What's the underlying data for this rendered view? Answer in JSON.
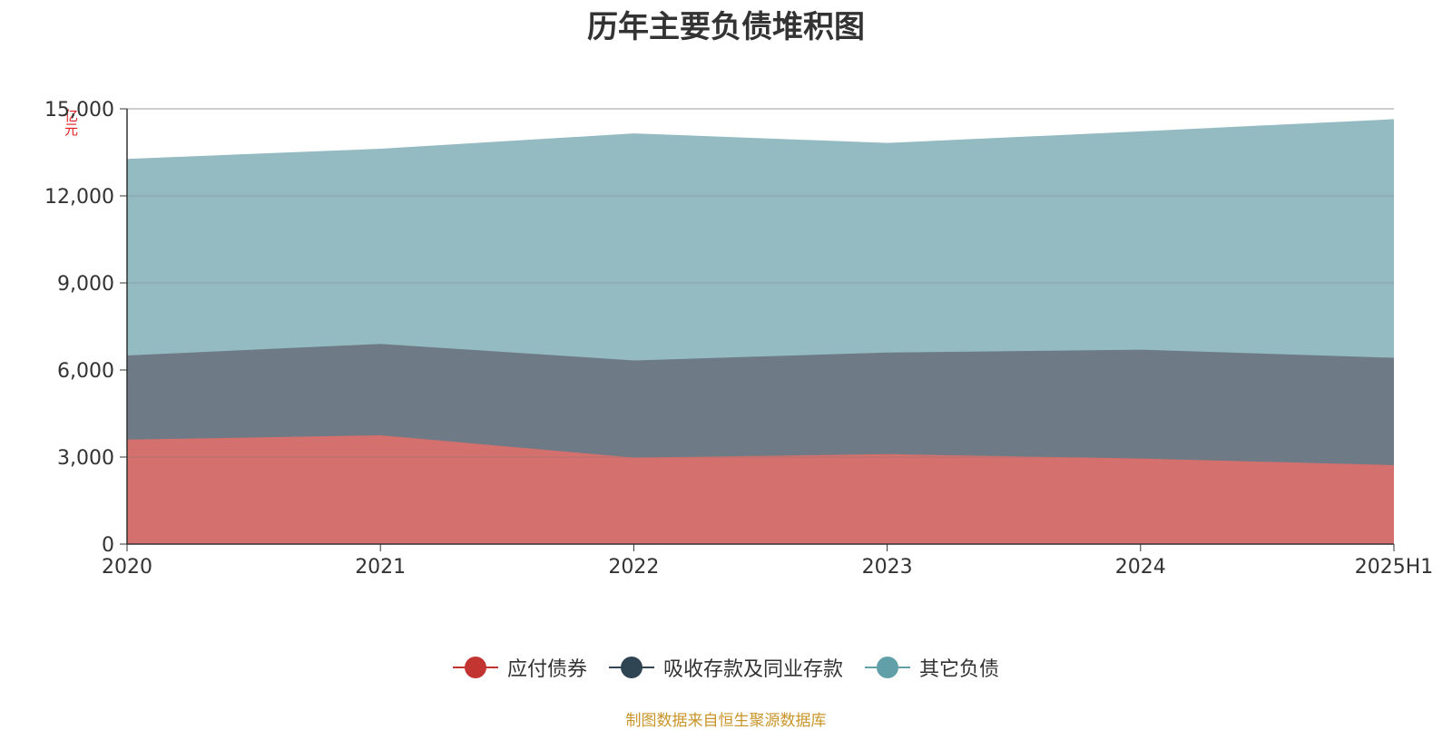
{
  "chart_data": {
    "type": "area",
    "stacked": true,
    "title": "历年主要负债堆积图",
    "ylabel": "亿元",
    "categories": [
      "2020",
      "2021",
      "2022",
      "2023",
      "2024",
      "2025H1"
    ],
    "ylim": [
      0,
      15000
    ],
    "yticks": [
      0,
      3000,
      6000,
      9000,
      12000,
      15000
    ],
    "ytick_labels": [
      "0",
      "3,000",
      "6,000",
      "9,000",
      "12,000",
      "15,000"
    ],
    "grid": true,
    "legend_position": "bottom-center",
    "series": [
      {
        "name": "应付债券",
        "values": [
          3600,
          3750,
          2980,
          3100,
          2950,
          2720
        ],
        "color": "#c23531",
        "fill": "#d4706d"
      },
      {
        "name": "吸收存款及同业存款",
        "values": [
          2900,
          3150,
          3350,
          3500,
          3750,
          3700
        ],
        "color": "#2f4554",
        "fill": "#6e7b86"
      },
      {
        "name": "其它负债",
        "values": [
          6750,
          6700,
          7800,
          7200,
          7500,
          8200
        ],
        "color": "#61a0a8",
        "fill": "#93bbc1"
      }
    ]
  },
  "source_note": "制图数据来自恒生聚源数据库"
}
